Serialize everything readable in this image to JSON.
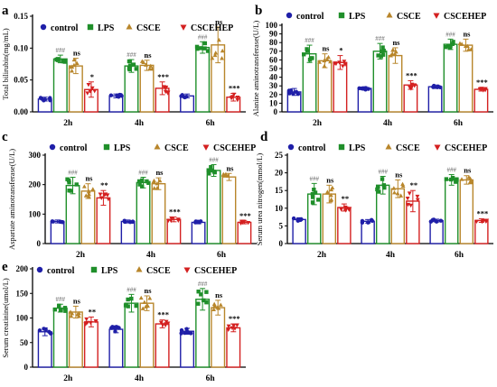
{
  "colors": {
    "control": "#1f1fa8",
    "LPS": "#1f8f2a",
    "CSCE": "#b8862b",
    "CSCEHEP": "#d42020"
  },
  "legend": [
    {
      "label": "control",
      "marker": "circle"
    },
    {
      "label": "LPS",
      "marker": "square"
    },
    {
      "label": "CSCE",
      "marker": "triangle-up"
    },
    {
      "label": "CSCEHEP",
      "marker": "triangle-down"
    }
  ],
  "chart_data": [
    {
      "panel": "a",
      "type": "bar",
      "ylabel": "Total bilirubin(mg/mL)",
      "categories": [
        "2h",
        "4h",
        "6h"
      ],
      "ylim": [
        0,
        0.15
      ],
      "yticks": [
        "0.00",
        "0.05",
        "0.10",
        "0.15"
      ],
      "series": [
        {
          "name": "control",
          "values": [
            0.02,
            0.025,
            0.025
          ],
          "err": [
            0.003,
            0.003,
            0.003
          ]
        },
        {
          "name": "LPS",
          "values": [
            0.083,
            0.072,
            0.101
          ],
          "err": [
            0.006,
            0.01,
            0.009
          ]
        },
        {
          "name": "CSCE",
          "values": [
            0.072,
            0.073,
            0.105
          ],
          "err": [
            0.012,
            0.008,
            0.028
          ]
        },
        {
          "name": "CSCEHEP",
          "values": [
            0.035,
            0.037,
            0.023
          ],
          "err": [
            0.012,
            0.01,
            0.006
          ]
        }
      ],
      "annotations": [
        [
          "",
          "###",
          "ns",
          "*"
        ],
        [
          "",
          "###",
          "ns",
          "***"
        ],
        [
          "",
          "###",
          "ns",
          "***"
        ]
      ]
    },
    {
      "panel": "b",
      "type": "bar",
      "ylabel": "Alanine aminotransferase(U/L)",
      "categories": [
        "2h",
        "4h",
        "6h"
      ],
      "ylim": [
        0,
        100
      ],
      "yticks": [
        "0",
        "10",
        "20",
        "30",
        "40",
        "50",
        "60",
        "70",
        "80",
        "90",
        "100"
      ],
      "series": [
        {
          "name": "control",
          "values": [
            23,
            27,
            29
          ],
          "err": [
            4,
            2,
            2
          ]
        },
        {
          "name": "LPS",
          "values": [
            67,
            70,
            78
          ],
          "err": [
            10,
            9,
            6
          ]
        },
        {
          "name": "CSCE",
          "values": [
            59,
            65,
            77
          ],
          "err": [
            8,
            9,
            7
          ]
        },
        {
          "name": "CSCEHEP",
          "values": [
            57,
            31,
            26
          ],
          "err": [
            8,
            5,
            2
          ]
        }
      ],
      "annotations": [
        [
          "",
          "###",
          "ns",
          "*"
        ],
        [
          "",
          "###",
          "ns",
          "***"
        ],
        [
          "",
          "###",
          "ns",
          "***"
        ]
      ]
    },
    {
      "panel": "c",
      "type": "bar",
      "ylabel": "Aspartate aminotransferase(U/L)",
      "categories": [
        "2h",
        "4h",
        "6h"
      ],
      "ylim": [
        0,
        300
      ],
      "yticks": [
        "0",
        "100",
        "200",
        "300"
      ],
      "series": [
        {
          "name": "control",
          "values": [
            75,
            75,
            72
          ],
          "err": [
            5,
            5,
            5
          ]
        },
        {
          "name": "LPS",
          "values": [
            197,
            207,
            248
          ],
          "err": [
            28,
            18,
            20
          ]
        },
        {
          "name": "CSCE",
          "values": [
            178,
            203,
            226
          ],
          "err": [
            25,
            20,
            12
          ]
        },
        {
          "name": "CSCEHEP",
          "values": [
            155,
            82,
            72
          ],
          "err": [
            25,
            8,
            5
          ]
        }
      ],
      "annotations": [
        [
          "",
          "###",
          "ns",
          "**"
        ],
        [
          "",
          "###",
          "ns",
          "***"
        ],
        [
          "",
          "###",
          "ns",
          "***"
        ]
      ]
    },
    {
      "panel": "d",
      "type": "bar",
      "ylabel": "Serum urea nitrogen(mmol/L)",
      "categories": [
        "2h",
        "4h",
        "6h"
      ],
      "ylim": [
        0,
        25
      ],
      "yticks": [
        "0",
        "5",
        "10",
        "15",
        "20",
        "25"
      ],
      "series": [
        {
          "name": "control",
          "values": [
            6.8,
            6.3,
            6.5
          ],
          "err": [
            0.5,
            0.5,
            0.4
          ]
        },
        {
          "name": "LPS",
          "values": [
            14,
            16.5,
            18
          ],
          "err": [
            3,
            2.5,
            1.5
          ]
        },
        {
          "name": "CSCE",
          "values": [
            14,
            15.5,
            18
          ],
          "err": [
            2.5,
            2.5,
            1.2
          ]
        },
        {
          "name": "CSCEHEP",
          "values": [
            10.2,
            12,
            6.5
          ],
          "err": [
            1,
            3,
            0.5
          ]
        }
      ],
      "annotations": [
        [
          "",
          "###",
          "ns",
          "**"
        ],
        [
          "",
          "###",
          "ns",
          "**"
        ],
        [
          "",
          "###",
          "ns",
          "***"
        ]
      ]
    },
    {
      "panel": "e",
      "type": "bar",
      "ylabel": "Serum creatinine(umol/L)",
      "categories": [
        "2h",
        "4h",
        "6h"
      ],
      "ylim": [
        0,
        200
      ],
      "yticks": [
        "0",
        "50",
        "100",
        "150",
        "200"
      ],
      "series": [
        {
          "name": "control",
          "values": [
            72,
            77,
            73
          ],
          "err": [
            8,
            7,
            6
          ]
        },
        {
          "name": "LPS",
          "values": [
            120,
            130,
            138
          ],
          "err": [
            8,
            18,
            22
          ]
        },
        {
          "name": "CSCE",
          "values": [
            112,
            130,
            121
          ],
          "err": [
            12,
            15,
            15
          ]
        },
        {
          "name": "CSCEHEP",
          "values": [
            92,
            88,
            80
          ],
          "err": [
            10,
            8,
            8
          ]
        }
      ],
      "annotations": [
        [
          "",
          "###",
          "ns",
          "**"
        ],
        [
          "",
          "###",
          "ns",
          "***"
        ],
        [
          "",
          "###",
          "ns",
          "***"
        ]
      ]
    }
  ]
}
